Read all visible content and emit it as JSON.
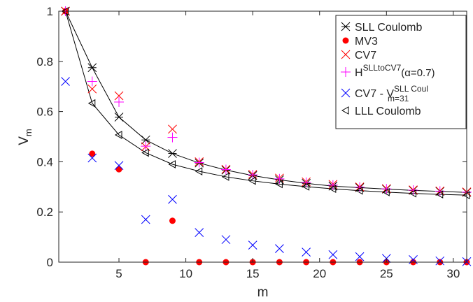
{
  "chart_data": {
    "type": "scatter",
    "xlabel": "m",
    "ylabel_main": "V",
    "ylabel_sub": "m",
    "xlim": [
      0.5,
      31
    ],
    "ylim": [
      0,
      1
    ],
    "xticks": [
      5,
      10,
      15,
      20,
      25,
      30
    ],
    "yticks": [
      0,
      0.2,
      0.4,
      0.6,
      0.8,
      1
    ],
    "ytick_labels": [
      "0",
      "0.2",
      "0.4",
      "0.6",
      "0.8",
      "1"
    ],
    "grid": false,
    "legend_position": "top-right",
    "series": [
      {
        "key": "sll",
        "marker": "asterisk-x",
        "line": true,
        "color": "#000000",
        "legend_text": "SLL Coulomb",
        "x": [
          1,
          3,
          5,
          7,
          9,
          11,
          13,
          15,
          17,
          19,
          21,
          23,
          25,
          27,
          29,
          31
        ],
        "y": [
          1.0,
          0.775,
          0.578,
          0.487,
          0.433,
          0.395,
          0.367,
          0.345,
          0.328,
          0.314,
          0.303,
          0.297,
          0.291,
          0.286,
          0.282,
          0.278
        ]
      },
      {
        "key": "mv3",
        "marker": "dot",
        "line": false,
        "color": "#ff0000",
        "legend_text": "MV3",
        "x": [
          1,
          3,
          5,
          7,
          9,
          11,
          13,
          15,
          17,
          19,
          21,
          23,
          25,
          27,
          29,
          31
        ],
        "y": [
          1.0,
          0.432,
          0.37,
          0.0,
          0.165,
          0.0,
          0.0,
          0.0,
          0.0,
          0.0,
          0.0,
          0.0,
          0.0,
          0.0,
          0.0,
          0.0
        ]
      },
      {
        "key": "cv7",
        "marker": "x",
        "line": false,
        "color": "#ff0000",
        "legend_text": "CV7",
        "x": [
          1,
          3,
          5,
          7,
          9,
          11,
          13,
          15,
          17,
          19,
          21,
          23,
          25,
          27,
          29,
          31
        ],
        "y": [
          1.0,
          0.69,
          0.663,
          0.46,
          0.53,
          0.4,
          0.37,
          0.35,
          0.335,
          0.32,
          0.31,
          0.3,
          0.293,
          0.288,
          0.284,
          0.28
        ]
      },
      {
        "key": "h",
        "marker": "plus",
        "line": false,
        "color": "#ff00ff",
        "legend_main": "H",
        "legend_sup": "SLLtoCV7",
        "legend_tail": "(α=0.7)",
        "x": [
          1,
          3,
          5,
          7,
          9,
          11,
          13,
          15,
          17,
          19,
          21,
          23,
          25,
          27,
          29,
          31
        ],
        "y": [
          1.0,
          0.72,
          0.638,
          0.462,
          0.497,
          0.397,
          0.369,
          0.348,
          0.332,
          0.318,
          0.307,
          0.299,
          0.292,
          0.287,
          0.283,
          0.279
        ]
      },
      {
        "key": "diff",
        "marker": "x",
        "line": false,
        "color": "#0000ff",
        "legend_main": "CV7 - V",
        "legend_sup": "SLL Coul",
        "legend_sub": "m=31",
        "x": [
          1,
          3,
          5,
          7,
          9,
          11,
          13,
          15,
          17,
          19,
          21,
          23,
          25,
          27,
          29,
          31
        ],
        "y": [
          0.72,
          0.415,
          0.385,
          0.17,
          0.25,
          0.118,
          0.09,
          0.068,
          0.054,
          0.04,
          0.03,
          0.022,
          0.015,
          0.01,
          0.005,
          0.002
        ]
      },
      {
        "key": "lll",
        "marker": "triangle-left",
        "line": true,
        "color": "#000000",
        "legend_text": "LLL Coulomb",
        "x": [
          1,
          3,
          5,
          7,
          9,
          11,
          13,
          15,
          17,
          19,
          21,
          23,
          25,
          27,
          29,
          31
        ],
        "y": [
          1.0,
          0.633,
          0.507,
          0.436,
          0.39,
          0.362,
          0.34,
          0.324,
          0.311,
          0.301,
          0.292,
          0.285,
          0.279,
          0.274,
          0.27,
          0.267
        ]
      }
    ]
  }
}
